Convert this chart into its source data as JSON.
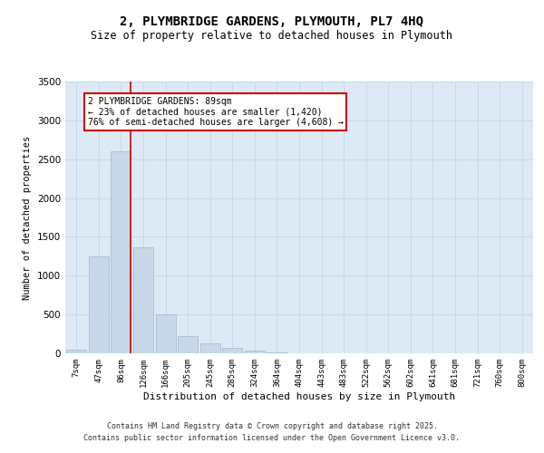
{
  "title_line1": "2, PLYMBRIDGE GARDENS, PLYMOUTH, PL7 4HQ",
  "title_line2": "Size of property relative to detached houses in Plymouth",
  "xlabel": "Distribution of detached houses by size in Plymouth",
  "ylabel": "Number of detached properties",
  "bar_labels": [
    "7sqm",
    "47sqm",
    "86sqm",
    "126sqm",
    "166sqm",
    "205sqm",
    "245sqm",
    "285sqm",
    "324sqm",
    "364sqm",
    "404sqm",
    "443sqm",
    "483sqm",
    "522sqm",
    "562sqm",
    "602sqm",
    "641sqm",
    "681sqm",
    "721sqm",
    "760sqm",
    "800sqm"
  ],
  "bar_values": [
    50,
    1250,
    2600,
    1370,
    500,
    220,
    130,
    65,
    40,
    15,
    5,
    3,
    1,
    0,
    0,
    0,
    0,
    0,
    0,
    0,
    0
  ],
  "bar_color": "#c8d8e8",
  "bar_edge_color": "#a0b8cc",
  "grid_color": "#c8d8e8",
  "vline_x_index": 2,
  "vline_color": "#cc0000",
  "ylim": [
    0,
    3500
  ],
  "yticks": [
    0,
    500,
    1000,
    1500,
    2000,
    2500,
    3000,
    3500
  ],
  "annotation_title": "2 PLYMBRIDGE GARDENS: 89sqm",
  "annotation_line2": "← 23% of detached houses are smaller (1,420)",
  "annotation_line3": "76% of semi-detached houses are larger (4,608) →",
  "annotation_box_color": "#ffffff",
  "annotation_box_edge": "#cc0000",
  "footer_line1": "Contains HM Land Registry data © Crown copyright and database right 2025.",
  "footer_line2": "Contains public sector information licensed under the Open Government Licence v3.0.",
  "bg_color": "#ffffff",
  "plot_bg_color": "#ddeaf5"
}
